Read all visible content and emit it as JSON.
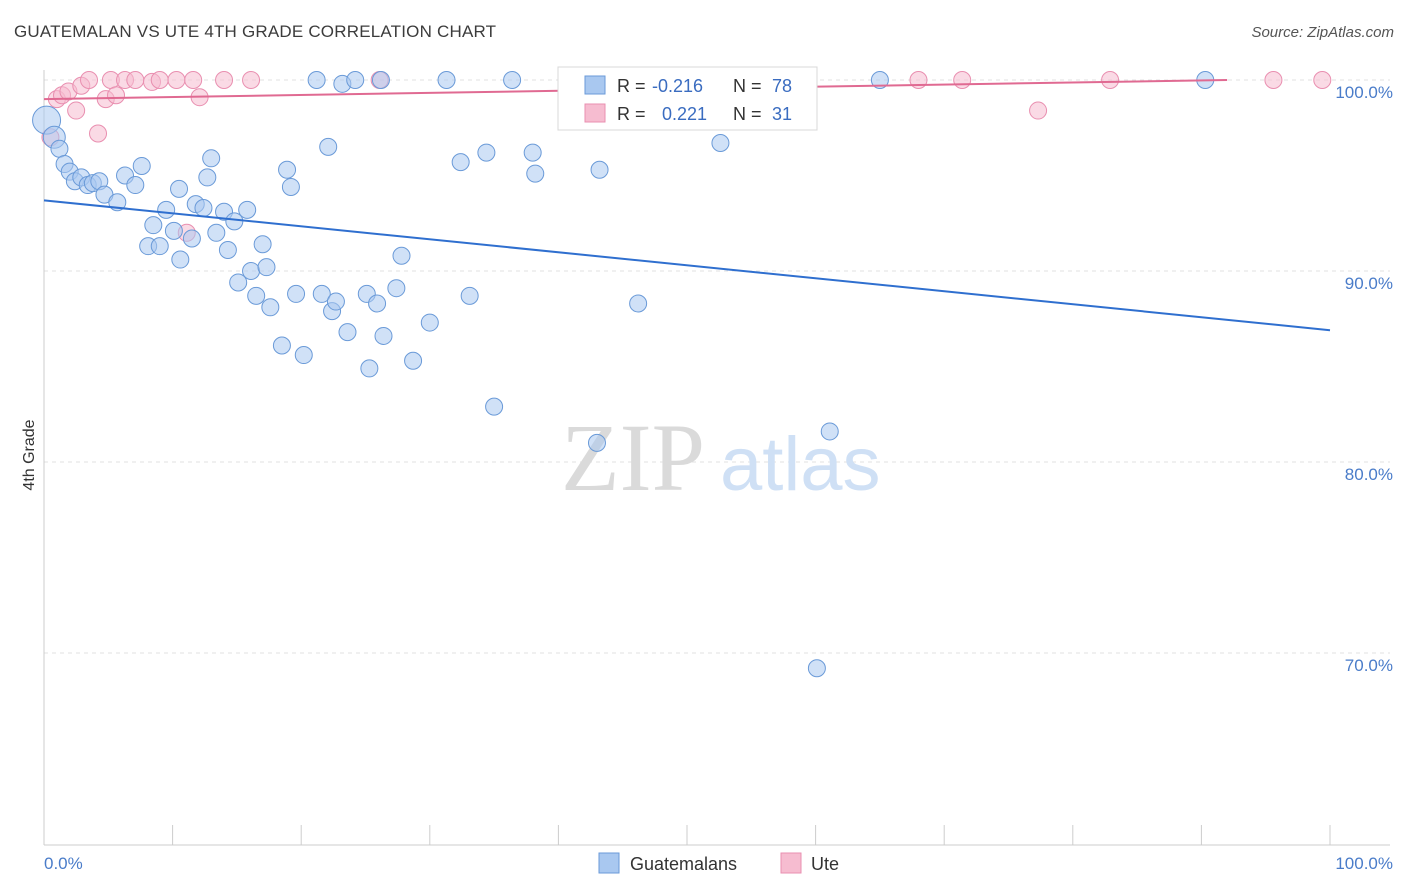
{
  "title": "GUATEMALAN VS UTE 4TH GRADE CORRELATION CHART",
  "source": "Source: ZipAtlas.com",
  "watermark": {
    "zip": "ZIP",
    "atlas": "atlas"
  },
  "colors": {
    "blue_fill": "#a9c8f0",
    "blue_stroke": "#6a9ad8",
    "blue_line": "#2f6fcf",
    "pink_fill": "#f6bcd0",
    "pink_stroke": "#e98fb0",
    "pink_line": "#e06a92",
    "axis_label": "#4a7cc9",
    "grid": "#e2e2e2"
  },
  "legend": {
    "rows": [
      {
        "r_label": "R =",
        "r_value": "-0.216",
        "n_label": "N =",
        "n_value": "78"
      },
      {
        "r_label": "R =",
        "r_value": "0.221",
        "n_label": "N =",
        "n_value": "31"
      }
    ]
  },
  "bottom_legend": [
    "Guatemalans",
    "Ute"
  ],
  "chart_data": {
    "type": "scatter",
    "title": "GUATEMALAN VS UTE 4TH GRADE CORRELATION CHART",
    "xlabel": "",
    "ylabel": "4th Grade",
    "xlim": [
      0,
      100
    ],
    "ylim": [
      61,
      101.5
    ],
    "x_tick_labels": [
      "0.0%",
      "100.0%"
    ],
    "y_ticks": [
      100,
      90,
      80,
      70
    ],
    "y_tick_labels": [
      "100.0%",
      "90.0%",
      "80.0%",
      "70.0%"
    ],
    "grid": true,
    "legend_position": "top-center",
    "series": [
      {
        "name": "Guatemalans",
        "trend": {
          "x": [
            0,
            100
          ],
          "y": [
            93.7,
            86.9
          ]
        },
        "points": [
          [
            0.2,
            97.9
          ],
          [
            0.8,
            97.0
          ],
          [
            1.2,
            96.4
          ],
          [
            1.6,
            95.6
          ],
          [
            2.0,
            95.2
          ],
          [
            2.4,
            94.7
          ],
          [
            2.9,
            94.9
          ],
          [
            3.4,
            94.5
          ],
          [
            3.8,
            94.6
          ],
          [
            4.3,
            94.7
          ],
          [
            4.7,
            94.0
          ],
          [
            5.7,
            93.6
          ],
          [
            6.3,
            95.0
          ],
          [
            7.1,
            94.5
          ],
          [
            7.6,
            95.5
          ],
          [
            8.1,
            91.3
          ],
          [
            8.5,
            92.4
          ],
          [
            9.0,
            91.3
          ],
          [
            9.5,
            93.2
          ],
          [
            10.1,
            92.1
          ],
          [
            10.5,
            94.3
          ],
          [
            10.6,
            90.6
          ],
          [
            11.5,
            91.7
          ],
          [
            11.8,
            93.5
          ],
          [
            12.4,
            93.3
          ],
          [
            12.7,
            94.9
          ],
          [
            13.0,
            95.9
          ],
          [
            13.4,
            92.0
          ],
          [
            14.0,
            93.1
          ],
          [
            14.3,
            91.1
          ],
          [
            14.8,
            92.6
          ],
          [
            15.1,
            89.4
          ],
          [
            15.8,
            93.2
          ],
          [
            16.1,
            90.0
          ],
          [
            16.5,
            88.7
          ],
          [
            17.0,
            91.4
          ],
          [
            17.3,
            90.2
          ],
          [
            17.6,
            88.1
          ],
          [
            18.5,
            86.1
          ],
          [
            18.9,
            95.3
          ],
          [
            19.2,
            94.4
          ],
          [
            19.6,
            88.8
          ],
          [
            20.2,
            85.6
          ],
          [
            21.2,
            100.0
          ],
          [
            21.6,
            88.8
          ],
          [
            22.1,
            96.5
          ],
          [
            22.4,
            87.9
          ],
          [
            22.7,
            88.4
          ],
          [
            23.2,
            99.8
          ],
          [
            23.6,
            86.8
          ],
          [
            24.2,
            100.0
          ],
          [
            25.1,
            88.8
          ],
          [
            25.3,
            84.9
          ],
          [
            25.9,
            88.3
          ],
          [
            26.2,
            100.0
          ],
          [
            26.4,
            86.6
          ],
          [
            27.4,
            89.1
          ],
          [
            27.8,
            90.8
          ],
          [
            28.7,
            85.3
          ],
          [
            30.0,
            87.3
          ],
          [
            31.3,
            100.0
          ],
          [
            32.4,
            95.7
          ],
          [
            33.1,
            88.7
          ],
          [
            34.4,
            96.2
          ],
          [
            35.0,
            82.9
          ],
          [
            36.4,
            100.0
          ],
          [
            38.0,
            96.2
          ],
          [
            38.2,
            95.1
          ],
          [
            43.0,
            81.0
          ],
          [
            43.2,
            95.3
          ],
          [
            46.2,
            88.3
          ],
          [
            50.0,
            100.0
          ],
          [
            52.6,
            96.7
          ],
          [
            58.8,
            100.0
          ],
          [
            61.1,
            81.6
          ],
          [
            60.1,
            69.2
          ],
          [
            65.0,
            100.0
          ],
          [
            90.3,
            100.0
          ]
        ]
      },
      {
        "name": "Ute",
        "trend": {
          "x": [
            0,
            92
          ],
          "y": [
            99.0,
            100.0
          ]
        },
        "points": [
          [
            0.5,
            97.0
          ],
          [
            1.0,
            99.0
          ],
          [
            1.4,
            99.2
          ],
          [
            1.9,
            99.4
          ],
          [
            2.5,
            98.4
          ],
          [
            2.9,
            99.7
          ],
          [
            3.5,
            100.0
          ],
          [
            4.2,
            97.2
          ],
          [
            4.8,
            99.0
          ],
          [
            5.2,
            100.0
          ],
          [
            5.6,
            99.2
          ],
          [
            6.3,
            100.0
          ],
          [
            7.1,
            100.0
          ],
          [
            8.4,
            99.9
          ],
          [
            9.0,
            100.0
          ],
          [
            10.3,
            100.0
          ],
          [
            11.1,
            92.0
          ],
          [
            11.6,
            100.0
          ],
          [
            12.1,
            99.1
          ],
          [
            14.0,
            100.0
          ],
          [
            16.1,
            100.0
          ],
          [
            26.1,
            100.0
          ],
          [
            52.0,
            99.8
          ],
          [
            52.6,
            100.0
          ],
          [
            58.6,
            100.0
          ],
          [
            68.0,
            100.0
          ],
          [
            71.4,
            100.0
          ],
          [
            77.3,
            98.4
          ],
          [
            82.9,
            100.0
          ],
          [
            95.6,
            100.0
          ],
          [
            99.4,
            100.0
          ]
        ]
      }
    ]
  }
}
